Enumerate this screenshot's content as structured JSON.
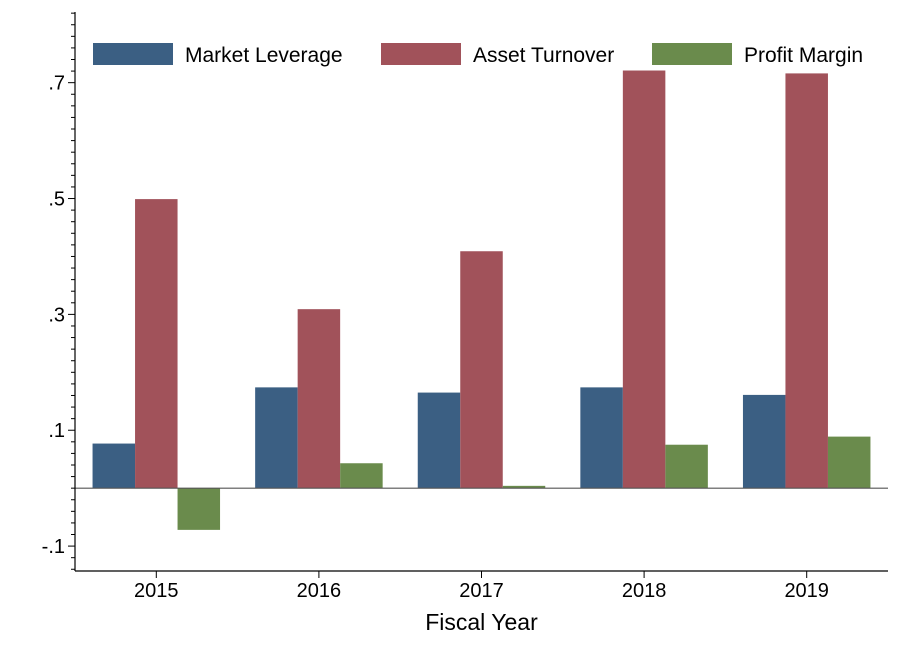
{
  "chart_data": {
    "type": "bar",
    "title": "",
    "xlabel": "Fiscal Year",
    "ylabel": "",
    "categories": [
      "2015",
      "2016",
      "2017",
      "2018",
      "2019"
    ],
    "series": [
      {
        "name": "Market Leverage",
        "color": "#3b5f83",
        "values": [
          0.077,
          0.174,
          0.165,
          0.174,
          0.161
        ]
      },
      {
        "name": "Asset Turnover",
        "color": "#a1525a",
        "values": [
          0.499,
          0.309,
          0.409,
          0.721,
          0.716
        ]
      },
      {
        "name": "Profit Margin",
        "color": "#6a8b4c",
        "values": [
          -0.072,
          0.043,
          0.004,
          0.075,
          0.089
        ]
      }
    ],
    "ylim": [
      -0.143,
      0.822
    ],
    "yticks": [
      -0.1,
      0.1,
      0.3,
      0.5,
      0.7
    ],
    "ytick_labels": [
      "-.1",
      ".1",
      ".3",
      ".5",
      ".7"
    ],
    "baseline": 0,
    "legend_position": "top",
    "grid": false
  }
}
